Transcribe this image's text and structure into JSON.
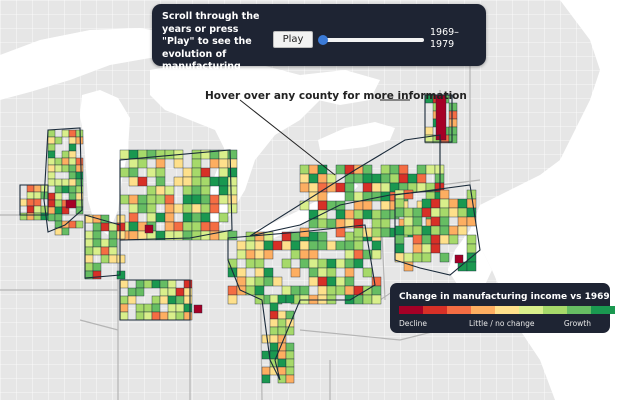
{
  "controls": {
    "instructions": "Scroll through the years or press \"Play\" to see the evolution of manufacturing incomes.",
    "play_label": "Play",
    "year_range": "1969–\n1979",
    "slider_value_fraction": 0.0
  },
  "annotation": "Hover over any county for more information",
  "legend": {
    "title": "Change in manufacturing income vs 1969",
    "label_decline": "Decline",
    "label_mid": "Little / no change",
    "label_growth": "Growth",
    "colors": [
      "#a50026",
      "#d73027",
      "#f46d43",
      "#fdae61",
      "#fee08b",
      "#d9ef8b",
      "#a6d96a",
      "#66bd63",
      "#1a9850"
    ]
  },
  "map_colors": {
    "water": "#ffffff",
    "land": "#e6e6e6",
    "county_border": "#ffffff",
    "state_border": "#b5b5b5",
    "region_outline": "#1a2a3a"
  }
}
